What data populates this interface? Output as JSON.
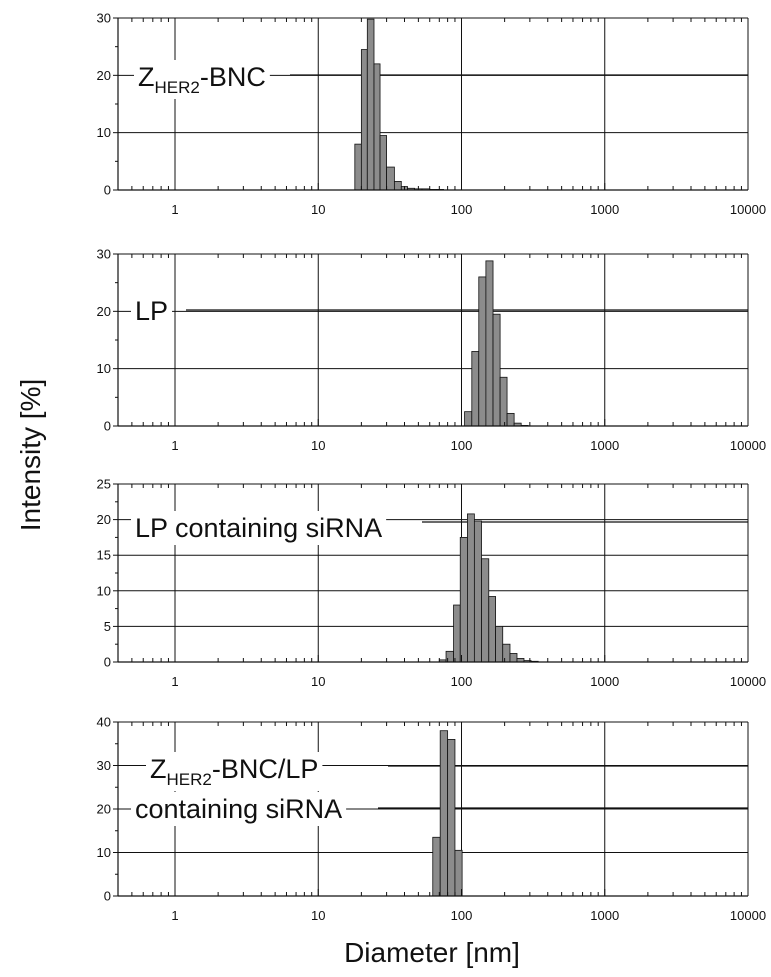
{
  "figure": {
    "ylabel": "Intensity [%]",
    "xlabel": "Diameter [nm]"
  },
  "chart_data": [
    {
      "type": "bar",
      "label": "Z_HER2-BNC",
      "label_parts": [
        [
          "Z",
          ""
        ],
        [
          "HER2",
          "sub"
        ],
        [
          "-BNC",
          ""
        ]
      ],
      "x_scale": "log",
      "xlim": [
        0.4,
        10000
      ],
      "ylim": [
        0,
        30
      ],
      "yticks": [
        0,
        10,
        20,
        30
      ],
      "xticks": [
        1,
        10,
        100,
        1000,
        10000
      ],
      "grid": true,
      "bin_edges": [
        18,
        20,
        22,
        24.5,
        27,
        30,
        34,
        38,
        42,
        47,
        53,
        60,
        67,
        75
      ],
      "values": [
        8,
        24.5,
        29.8,
        22,
        9.5,
        4,
        1.5,
        0.6,
        0.3,
        0.2,
        0.2,
        0.1,
        0.1
      ]
    },
    {
      "type": "bar",
      "label": "LP",
      "label_parts": [
        [
          "LP",
          ""
        ]
      ],
      "x_scale": "log",
      "xlim": [
        0.4,
        10000
      ],
      "ylim": [
        0,
        30
      ],
      "yticks": [
        0,
        10,
        20,
        30
      ],
      "xticks": [
        1,
        10,
        100,
        1000,
        10000
      ],
      "grid": true,
      "bin_edges": [
        105,
        118,
        132,
        148,
        166,
        186,
        208,
        233,
        261,
        292
      ],
      "values": [
        2.5,
        13,
        26,
        28.8,
        19.5,
        8.5,
        2.2,
        0.5,
        0.1
      ]
    },
    {
      "type": "bar",
      "label": "LP containing siRNA",
      "label_parts": [
        [
          "LP containing siRNA",
          ""
        ]
      ],
      "x_scale": "log",
      "xlim": [
        0.4,
        10000
      ],
      "ylim": [
        0,
        25
      ],
      "yticks": [
        0,
        5,
        10,
        15,
        20,
        25
      ],
      "xticks": [
        1,
        10,
        100,
        1000,
        10000
      ],
      "grid": true,
      "bin_edges": [
        70,
        78,
        88,
        98,
        110,
        123,
        138,
        155,
        173,
        194,
        218,
        244,
        273,
        306,
        343
      ],
      "values": [
        0.3,
        1.5,
        8,
        17.5,
        20.8,
        19.8,
        14.5,
        9.2,
        5,
        2.5,
        1.2,
        0.5,
        0.2,
        0.1
      ]
    },
    {
      "type": "bar",
      "label": "Z_HER2-BNC/LP containing siRNA",
      "label_parts": [
        [
          "Z",
          ""
        ],
        [
          "HER2",
          "sub"
        ],
        [
          "-BNC/LP",
          ""
        ]
      ],
      "label_line2": "containing siRNA",
      "x_scale": "log",
      "xlim": [
        0.4,
        10000
      ],
      "ylim": [
        0,
        40
      ],
      "yticks": [
        0,
        10,
        20,
        30,
        40
      ],
      "xticks": [
        1,
        10,
        100,
        1000,
        10000
      ],
      "grid": true,
      "bin_edges": [
        63,
        71,
        80,
        90,
        101,
        113
      ],
      "values": [
        13.5,
        38,
        36,
        10.5,
        0
      ]
    }
  ]
}
